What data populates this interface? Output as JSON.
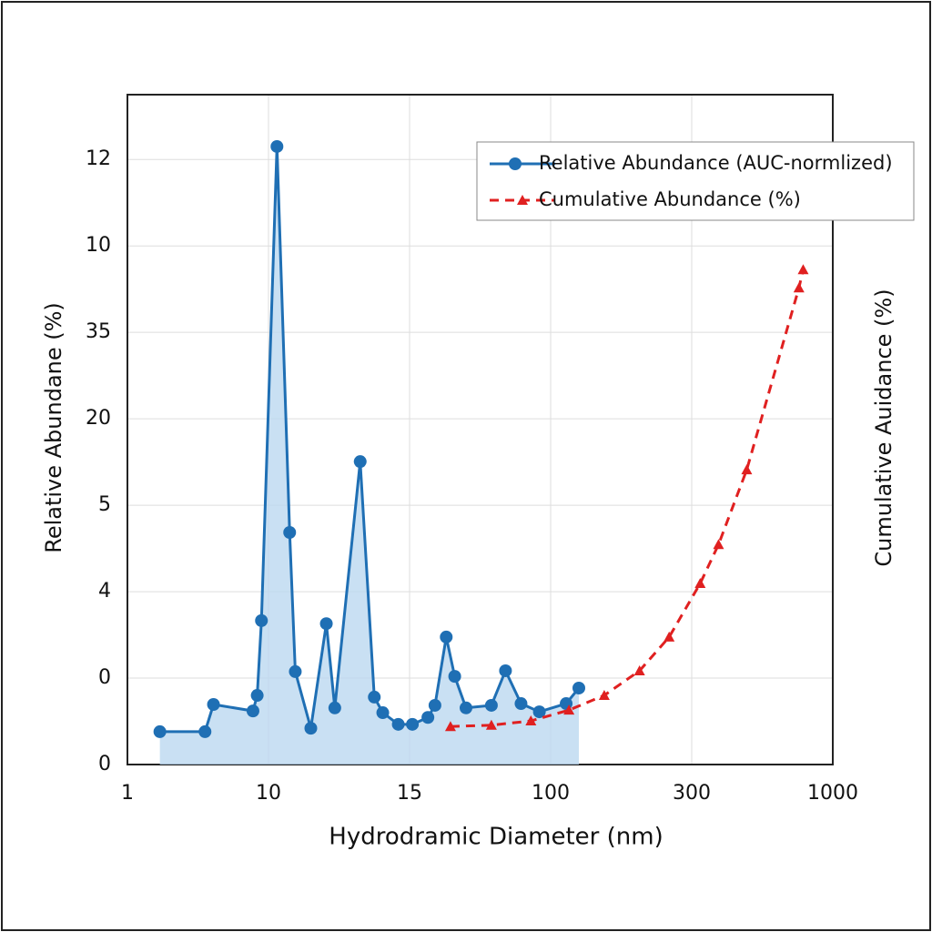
{
  "chart_data": {
    "type": "line",
    "x_label": "Hydrodramic Diameter (nm)",
    "y_label": "Relative Abundane (%)",
    "y2_label": "Cumulative Auidance (%)",
    "xlim": [
      0,
      5
    ],
    "xticks": [
      {
        "value": 0,
        "label": "1"
      },
      {
        "value": 1,
        "label": "10"
      },
      {
        "value": 2,
        "label": "15"
      },
      {
        "value": 3,
        "label": "100"
      },
      {
        "value": 4,
        "label": "300"
      },
      {
        "value": 5,
        "label": "1000"
      }
    ],
    "ylim": [
      0,
      15.5
    ],
    "yticks": [
      0,
      {
        "value": 2,
        "label": "0"
      },
      4,
      {
        "value": 6,
        "label": "5"
      },
      {
        "value": 8,
        "label": "20"
      },
      {
        "value": 10,
        "label": "35"
      },
      {
        "value": 12,
        "label": "10"
      },
      {
        "value": 14,
        "label": "12"
      }
    ],
    "grid": true,
    "legend": "upper right",
    "series": [
      {
        "name": "Relative Abundance (AUC-normlized)",
        "color": "#1f6fb4",
        "marker": "circle",
        "fill": true,
        "x": [
          0.23,
          0.55,
          0.61,
          0.89,
          0.92,
          0.95,
          1.06,
          1.15,
          1.19,
          1.3,
          1.41,
          1.47,
          1.65,
          1.75,
          1.81,
          1.92,
          2.02,
          2.13,
          2.18,
          2.26,
          2.32,
          2.4,
          2.58,
          2.68,
          2.79,
          2.92,
          3.11,
          3.2
        ],
        "values": [
          0.76,
          0.76,
          1.39,
          1.24,
          1.6,
          3.33,
          14.3,
          5.37,
          2.15,
          0.84,
          3.26,
          1.31,
          7.01,
          1.56,
          1.2,
          0.93,
          0.93,
          1.09,
          1.37,
          2.95,
          2.04,
          1.31,
          1.37,
          2.17,
          1.41,
          1.22,
          1.41,
          1.77
        ]
      },
      {
        "name": "Cumulative Abundance (%)",
        "color": "#e02020",
        "marker": "triangle",
        "dashed": true,
        "x": [
          2.29,
          2.58,
          2.86,
          3.13,
          3.38,
          3.63,
          3.84,
          4.06,
          4.19,
          4.39,
          4.76,
          4.79
        ],
        "values": [
          0.88,
          0.91,
          1.01,
          1.26,
          1.6,
          2.17,
          2.95,
          4.19,
          5.09,
          6.82,
          11.03,
          11.45
        ]
      }
    ]
  }
}
